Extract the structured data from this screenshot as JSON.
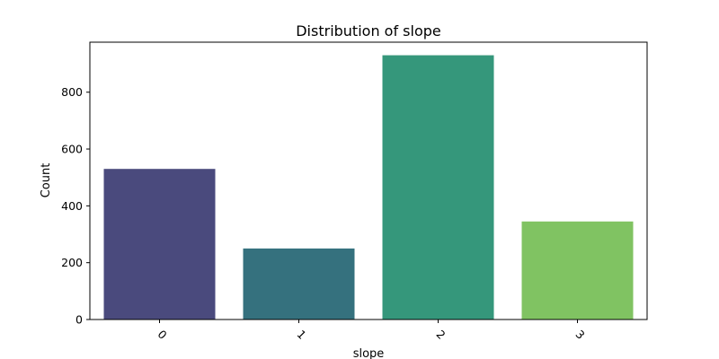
{
  "chart_data": {
    "type": "bar",
    "title": "Distribution of slope",
    "xlabel": "slope",
    "ylabel": "Count",
    "categories": [
      "0",
      "1",
      "2",
      "3"
    ],
    "values": [
      530,
      250,
      930,
      345
    ],
    "ylim": [
      0,
      976
    ],
    "yticks": [
      0,
      200,
      400,
      600,
      800
    ],
    "colors": [
      "#4a4a7d",
      "#35717e",
      "#35977b",
      "#80c362"
    ],
    "grid": false,
    "legend": "none"
  }
}
